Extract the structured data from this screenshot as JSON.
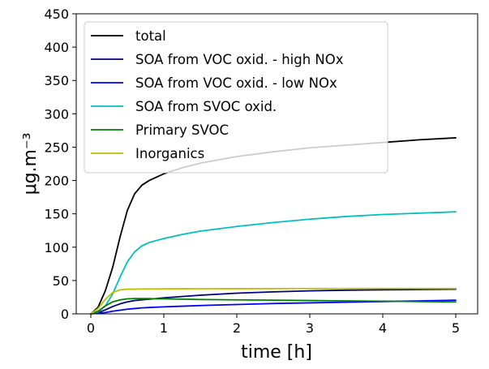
{
  "chart_data": {
    "type": "line",
    "xlabel": "time [h]",
    "ylabel": "μg.m⁻³",
    "xlim": [
      -0.2,
      5.3
    ],
    "ylim": [
      0,
      450
    ],
    "xticks": [
      0,
      1,
      2,
      3,
      4,
      5
    ],
    "yticks": [
      0,
      50,
      100,
      150,
      200,
      250,
      300,
      350,
      400,
      450
    ],
    "grid": false,
    "legend_position": "top-left",
    "x": [
      0,
      0.1,
      0.2,
      0.3,
      0.4,
      0.5,
      0.6,
      0.7,
      0.8,
      0.9,
      1.0,
      1.25,
      1.5,
      2.0,
      2.5,
      3.0,
      3.5,
      4.0,
      4.5,
      5.0
    ],
    "series": [
      {
        "name": "total",
        "color": "#000000",
        "values": [
          0,
          10,
          35,
          70,
          115,
          155,
          180,
          193,
          200,
          205,
          210,
          219,
          226,
          236,
          243,
          249,
          253,
          257,
          261,
          264
        ]
      },
      {
        "name": "SOA from VOC oxid. - high NOx",
        "color": "#000080",
        "values": [
          0,
          2,
          6,
          11,
          15,
          18,
          20,
          21,
          22,
          23,
          24,
          26,
          28,
          31,
          33,
          34.5,
          35.5,
          36,
          36.5,
          37
        ]
      },
      {
        "name": "SOA from VOC oxid. - low NOx",
        "color": "#0000ff",
        "values": [
          0,
          1,
          2,
          4,
          5.5,
          7,
          8,
          9,
          9.5,
          10,
          10.5,
          11.5,
          12.5,
          14,
          15.5,
          16.5,
          17.5,
          18.5,
          19.5,
          20.5
        ]
      },
      {
        "name": "SOA from SVOC oxid.",
        "color": "#00bfbf",
        "values": [
          0,
          3,
          12,
          30,
          55,
          78,
          93,
          102,
          107,
          110,
          113,
          119,
          124,
          131,
          137,
          142,
          146,
          149,
          151,
          153
        ]
      },
      {
        "name": "Primary SVOC",
        "color": "#008000",
        "values": [
          0,
          4,
          12,
          18,
          21,
          22.5,
          23,
          23,
          23,
          22.5,
          22.5,
          22,
          21.5,
          21,
          20.5,
          20,
          19.5,
          19,
          18.5,
          18
        ]
      },
      {
        "name": "Inorganics",
        "color": "#bfbf00",
        "values": [
          0,
          8,
          22,
          32,
          36,
          37,
          37,
          37.2,
          37.3,
          37.4,
          37.5,
          37.6,
          37.7,
          37.8,
          37.9,
          38,
          38,
          38,
          38,
          38
        ]
      }
    ]
  }
}
